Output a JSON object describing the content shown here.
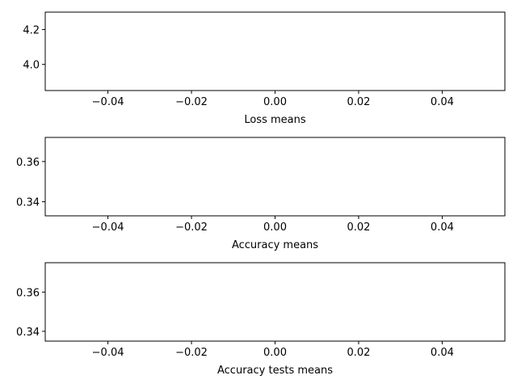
{
  "chart_data": [
    {
      "type": "line",
      "xlabel": "Loss means",
      "ylabel": "",
      "series": [
        {
          "x": [],
          "y": []
        }
      ],
      "xlim": [
        -0.055,
        0.055
      ],
      "ylim": [
        3.85,
        4.3
      ],
      "xticks": [
        -0.04,
        -0.02,
        0.0,
        0.02,
        0.04
      ],
      "xtick_labels": [
        "−0.04",
        "−0.02",
        "0.00",
        "0.02",
        "0.04"
      ],
      "yticks": [
        4.0,
        4.2
      ],
      "ytick_labels": [
        "4.0",
        "4.2"
      ],
      "grid": false
    },
    {
      "type": "line",
      "xlabel": "Accuracy means",
      "ylabel": "",
      "series": [
        {
          "x": [],
          "y": []
        }
      ],
      "xlim": [
        -0.055,
        0.055
      ],
      "ylim": [
        0.333,
        0.372
      ],
      "xticks": [
        -0.04,
        -0.02,
        0.0,
        0.02,
        0.04
      ],
      "xtick_labels": [
        "−0.04",
        "−0.02",
        "0.00",
        "0.02",
        "0.04"
      ],
      "yticks": [
        0.34,
        0.36
      ],
      "ytick_labels": [
        "0.34",
        "0.36"
      ],
      "grid": false
    },
    {
      "type": "line",
      "xlabel": "Accuracy tests means",
      "ylabel": "",
      "series": [
        {
          "x": [],
          "y": []
        }
      ],
      "xlim": [
        -0.055,
        0.055
      ],
      "ylim": [
        0.335,
        0.375
      ],
      "xticks": [
        -0.04,
        -0.02,
        0.0,
        0.02,
        0.04
      ],
      "xtick_labels": [
        "−0.04",
        "−0.02",
        "0.00",
        "0.02",
        "0.04"
      ],
      "yticks": [
        0.34,
        0.36
      ],
      "ytick_labels": [
        "0.34",
        "0.36"
      ],
      "grid": false
    }
  ]
}
